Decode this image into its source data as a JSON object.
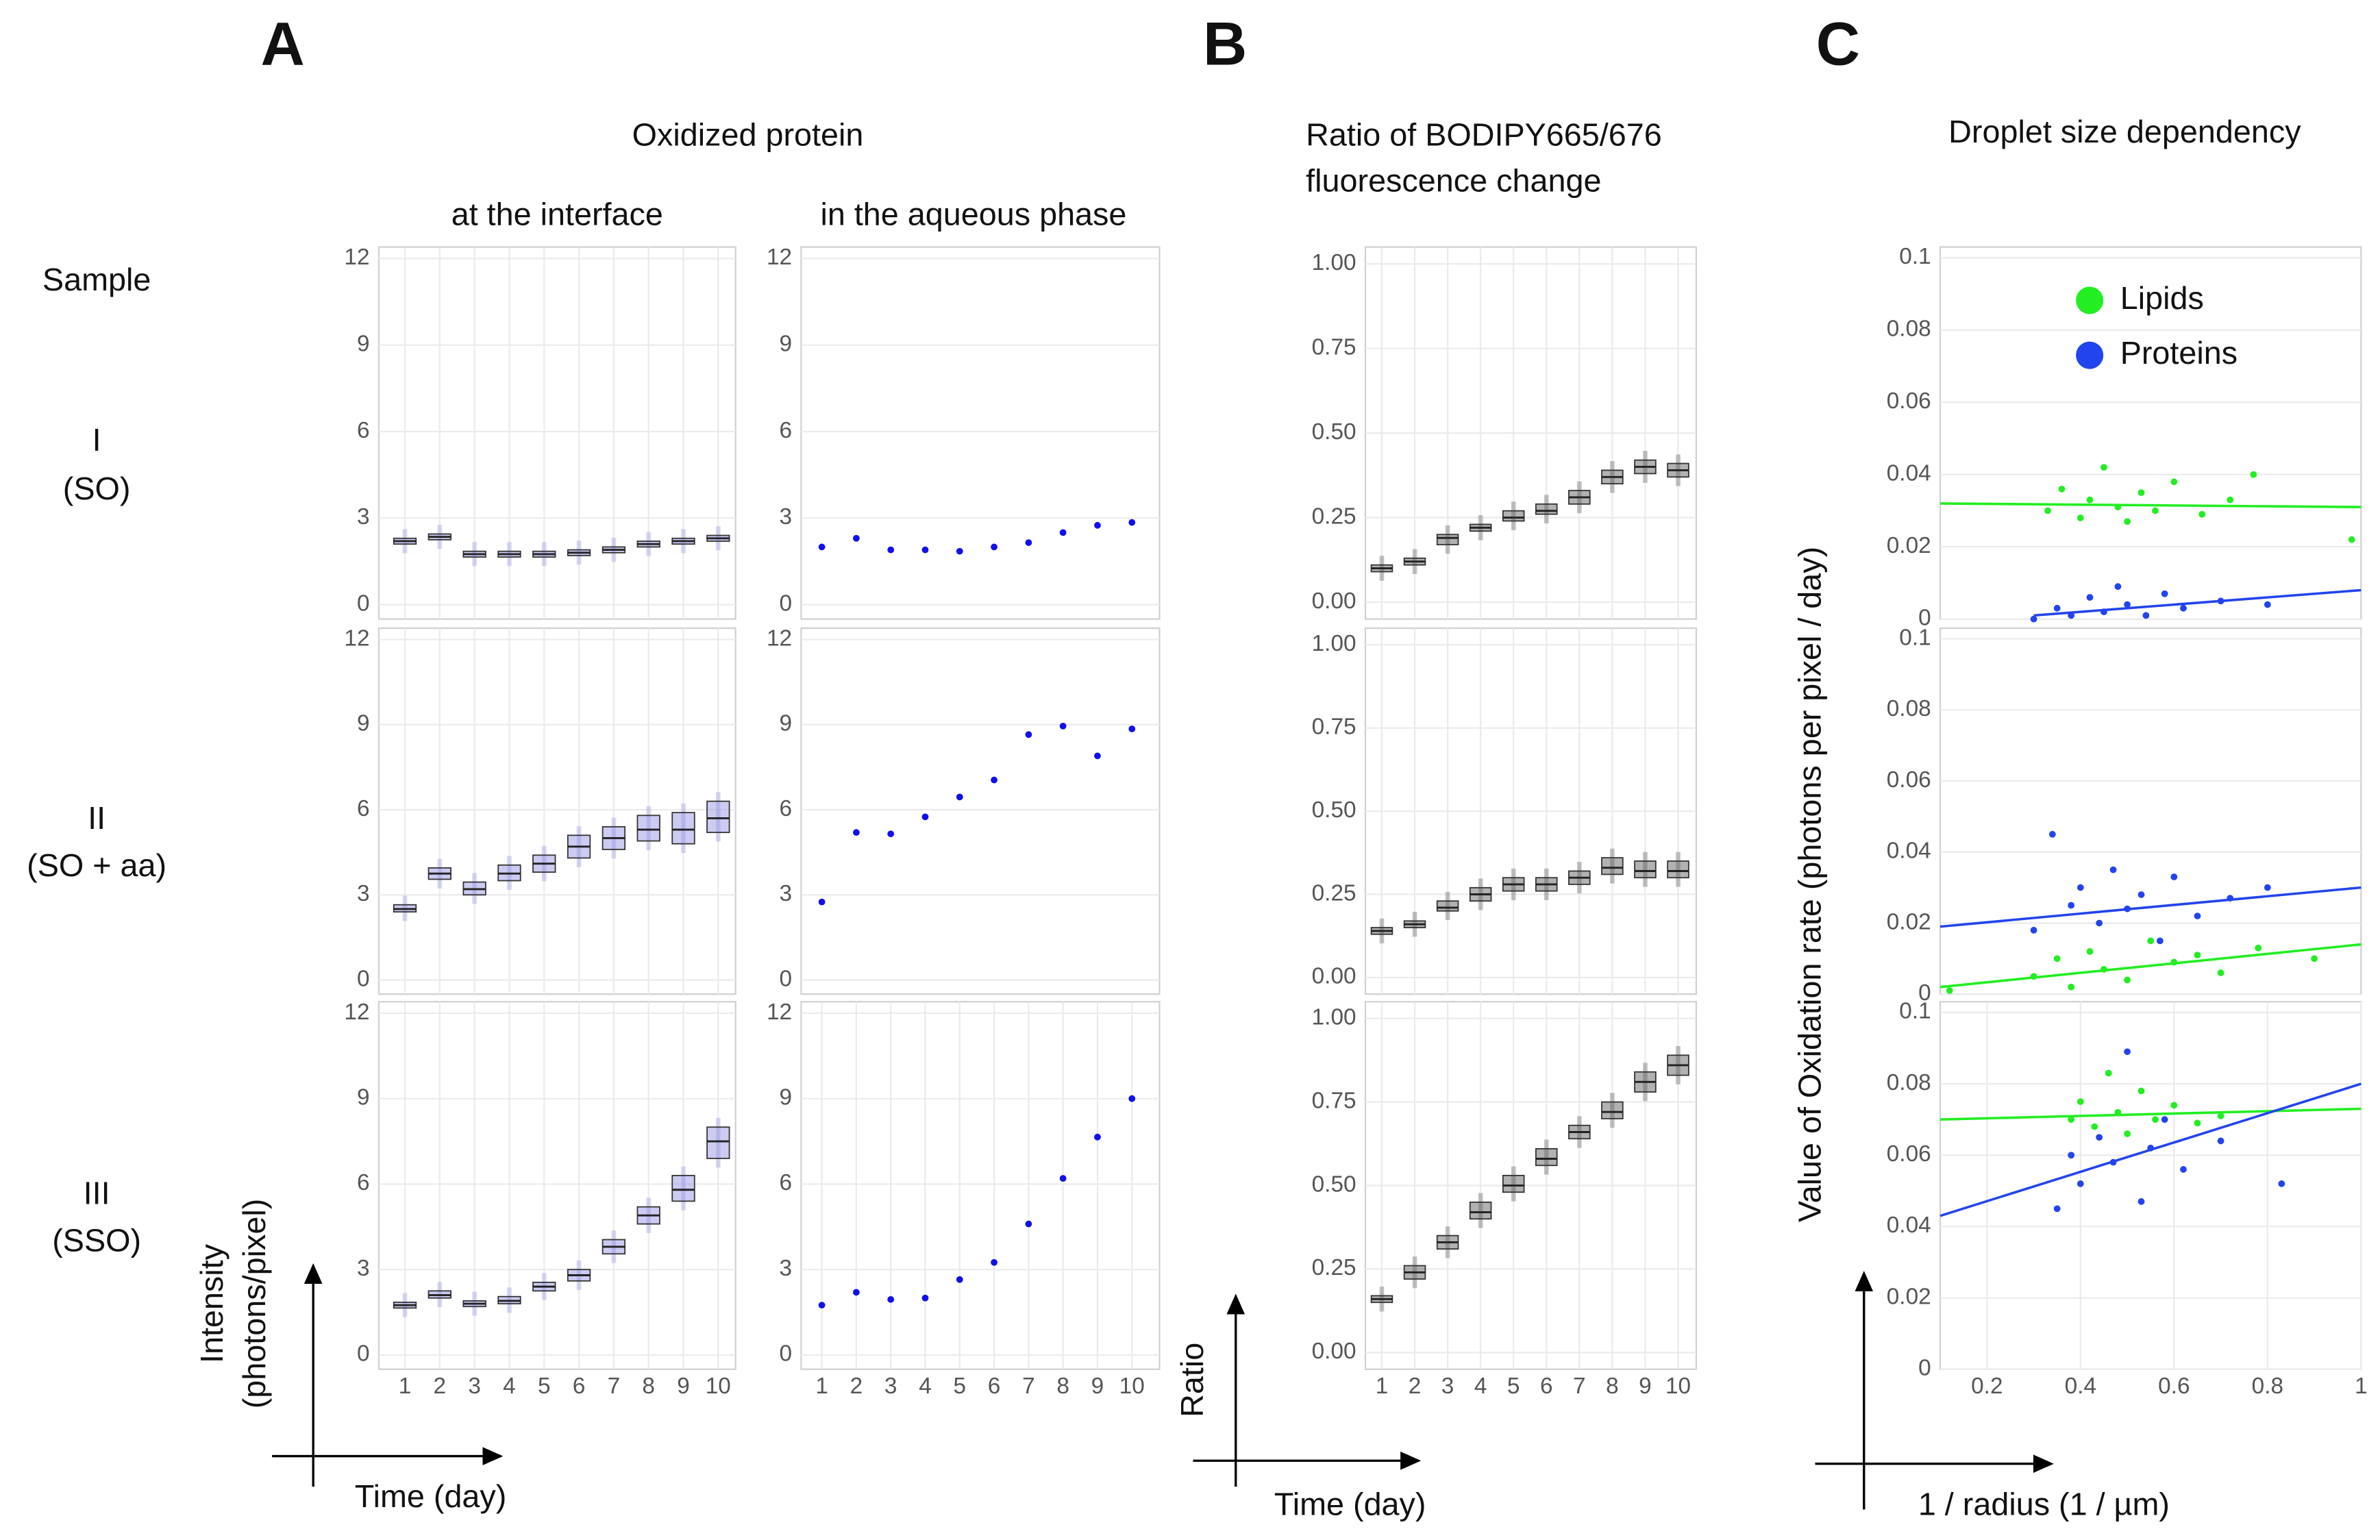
{
  "labels": {
    "panel_a": "A",
    "panel_b": "B",
    "panel_c": "C",
    "oxidized_protein": "Oxidized protein",
    "at_interface": "at the interface",
    "aqueous_phase": "in the aqueous phase",
    "sample": "Sample",
    "row1": "I",
    "row1_sample": "(SO)",
    "row2": "II",
    "row2_sample": "(SO + aa)",
    "row3": "III",
    "row3_sample": "(SSO)",
    "a_ylabel_1": "Intensity",
    "a_ylabel_2": "(photons/pixel)",
    "a_xlabel": "Time (day)",
    "b_title_1": "Ratio of BODIPY665/676",
    "b_title_2": "fluorescence change",
    "b_ylabel": "Ratio",
    "b_xlabel": "Time (day)",
    "c_title": "Droplet size dependency",
    "c_ylabel": "Value of Oxidation rate (photons per pixel / day)",
    "c_xlabel": "1 / radius (1 / µm)"
  },
  "chart_data": [
    {
      "type": "box",
      "color": "#9a9ae6",
      "grid": true,
      "x": [
        1,
        2,
        3,
        4,
        5,
        6,
        7,
        8,
        9,
        10
      ],
      "xlim": [
        0.25,
        10.5
      ],
      "ylim": [
        -0.5,
        12.4
      ],
      "yticks": [
        0,
        3,
        6,
        9,
        12
      ],
      "values": [
        2.2,
        2.35,
        1.75,
        1.75,
        1.75,
        1.8,
        1.9,
        2.1,
        2.2,
        2.3
      ],
      "q1": [
        2.1,
        2.25,
        1.65,
        1.65,
        1.65,
        1.7,
        1.8,
        2.0,
        2.1,
        2.2
      ],
      "q3": [
        2.3,
        2.45,
        1.85,
        1.85,
        1.85,
        1.9,
        2.0,
        2.2,
        2.3,
        2.4
      ]
    },
    {
      "type": "scatter",
      "grid": true,
      "xlim": [
        0.4,
        10.8
      ],
      "ylim": [
        -0.5,
        12.4
      ],
      "yticks": [
        0,
        3,
        6,
        9,
        12
      ],
      "series": [
        {
          "color": "#1010ee",
          "x": [
            1,
            2,
            3,
            4,
            5,
            6,
            7,
            8,
            9,
            10
          ],
          "values": [
            2.0,
            2.3,
            1.9,
            1.9,
            1.85,
            2.0,
            2.15,
            2.5,
            2.75,
            2.85
          ]
        }
      ]
    },
    {
      "type": "box",
      "color": "#666666",
      "grid": true,
      "x": [
        1,
        2,
        3,
        4,
        5,
        6,
        7,
        8,
        9,
        10
      ],
      "xlim": [
        0.5,
        10.55
      ],
      "ylim": [
        -0.05,
        1.05
      ],
      "yticks": [
        {
          "value": 0,
          "label": "0.00"
        },
        {
          "value": 0.25,
          "label": "0.25"
        },
        {
          "value": 0.5,
          "label": "0.50"
        },
        {
          "value": 0.75,
          "label": "0.75"
        },
        {
          "value": 1,
          "label": "1.00"
        }
      ],
      "values": [
        0.1,
        0.12,
        0.19,
        0.22,
        0.25,
        0.27,
        0.31,
        0.37,
        0.4,
        0.39
      ],
      "q1": [
        0.09,
        0.11,
        0.17,
        0.21,
        0.24,
        0.26,
        0.29,
        0.35,
        0.38,
        0.37
      ],
      "q3": [
        0.11,
        0.13,
        0.2,
        0.23,
        0.27,
        0.29,
        0.33,
        0.39,
        0.42,
        0.41
      ]
    },
    {
      "type": "scatter",
      "grid": true,
      "xlim": [
        0.1,
        1
      ],
      "ylim": [
        0,
        0.103
      ],
      "yticks": [
        0,
        0.02,
        0.04,
        0.06,
        0.08,
        0.1
      ],
      "legend": "top",
      "series": [
        {
          "name": "Lipids",
          "color": "#22ee22",
          "x": [
            0.33,
            0.36,
            0.4,
            0.42,
            0.45,
            0.48,
            0.5,
            0.53,
            0.56,
            0.6,
            0.66,
            0.72,
            0.77,
            0.98
          ],
          "values": [
            0.03,
            0.036,
            0.028,
            0.033,
            0.042,
            0.031,
            0.027,
            0.035,
            0.03,
            0.038,
            0.029,
            0.033,
            0.04,
            0.022
          ],
          "fit_x": [
            0.1,
            1
          ],
          "fit_y": [
            0.032,
            0.031
          ]
        },
        {
          "name": "Proteins",
          "color": "#2244ee",
          "x": [
            0.3,
            0.35,
            0.38,
            0.42,
            0.45,
            0.48,
            0.5,
            0.54,
            0.58,
            0.62,
            0.7,
            0.8
          ],
          "values": [
            0,
            0.003,
            0.001,
            0.006,
            0.002,
            0.009,
            0.004,
            0.001,
            0.007,
            0.003,
            0.005,
            0.004
          ],
          "fit_x": [
            0.3,
            1
          ],
          "fit_y": [
            0.001,
            0.008
          ]
        }
      ]
    },
    {
      "type": "box",
      "color": "#9a9ae6",
      "grid": true,
      "x": [
        1,
        2,
        3,
        4,
        5,
        6,
        7,
        8,
        9,
        10
      ],
      "xlim": [
        0.25,
        10.5
      ],
      "ylim": [
        -0.5,
        12.4
      ],
      "yticks": [
        0,
        3,
        6,
        9,
        12
      ],
      "values": [
        2.5,
        3.75,
        3.2,
        3.75,
        4.1,
        4.7,
        5.0,
        5.3,
        5.3,
        5.7
      ],
      "q1": [
        2.4,
        3.55,
        3.0,
        3.5,
        3.8,
        4.3,
        4.6,
        4.9,
        4.8,
        5.2
      ],
      "q3": [
        2.65,
        3.95,
        3.45,
        4.05,
        4.4,
        5.1,
        5.4,
        5.8,
        5.9,
        6.3
      ]
    },
    {
      "type": "scatter",
      "grid": true,
      "xlim": [
        0.4,
        10.8
      ],
      "ylim": [
        -0.5,
        12.4
      ],
      "yticks": [
        0,
        3,
        6,
        9,
        12
      ],
      "series": [
        {
          "color": "#1010ee",
          "x": [
            1,
            2,
            3,
            4,
            5,
            6,
            7,
            8,
            9,
            10
          ],
          "values": [
            2.75,
            5.2,
            5.15,
            5.75,
            6.45,
            7.05,
            8.65,
            8.95,
            7.9,
            8.85
          ]
        }
      ]
    },
    {
      "type": "box",
      "color": "#666666",
      "grid": true,
      "x": [
        1,
        2,
        3,
        4,
        5,
        6,
        7,
        8,
        9,
        10
      ],
      "xlim": [
        0.5,
        10.55
      ],
      "ylim": [
        -0.05,
        1.05
      ],
      "yticks": [
        {
          "value": 0,
          "label": "0.00"
        },
        {
          "value": 0.25,
          "label": "0.25"
        },
        {
          "value": 0.5,
          "label": "0.50"
        },
        {
          "value": 0.75,
          "label": "0.75"
        },
        {
          "value": 1,
          "label": "1.00"
        }
      ],
      "values": [
        0.14,
        0.16,
        0.21,
        0.25,
        0.28,
        0.28,
        0.3,
        0.33,
        0.32,
        0.32
      ],
      "q1": [
        0.13,
        0.15,
        0.2,
        0.23,
        0.26,
        0.26,
        0.28,
        0.31,
        0.3,
        0.3
      ],
      "q3": [
        0.15,
        0.17,
        0.23,
        0.27,
        0.3,
        0.3,
        0.32,
        0.36,
        0.35,
        0.35
      ]
    },
    {
      "type": "scatter",
      "grid": true,
      "xlim": [
        0.1,
        1
      ],
      "ylim": [
        0,
        0.103
      ],
      "yticks": [
        0,
        0.02,
        0.04,
        0.06,
        0.08,
        0.1
      ],
      "series": [
        {
          "color": "#2244ee",
          "x": [
            0.3,
            0.34,
            0.38,
            0.4,
            0.44,
            0.47,
            0.5,
            0.53,
            0.57,
            0.6,
            0.65,
            0.72,
            0.8
          ],
          "values": [
            0.018,
            0.045,
            0.025,
            0.03,
            0.02,
            0.035,
            0.024,
            0.028,
            0.015,
            0.033,
            0.022,
            0.027,
            0.03
          ],
          "fit_x": [
            0.1,
            1
          ],
          "fit_y": [
            0.019,
            0.03
          ]
        },
        {
          "color": "#22ee22",
          "x": [
            0.12,
            0.3,
            0.35,
            0.38,
            0.42,
            0.45,
            0.5,
            0.55,
            0.6,
            0.65,
            0.7,
            0.78,
            0.9
          ],
          "values": [
            0.001,
            0.005,
            0.01,
            0.002,
            0.012,
            0.007,
            0.004,
            0.015,
            0.009,
            0.011,
            0.006,
            0.013,
            0.01
          ],
          "fit_x": [
            0.1,
            1
          ],
          "fit_y": [
            0.002,
            0.014
          ]
        }
      ]
    },
    {
      "type": "box",
      "color": "#9a9ae6",
      "grid": true,
      "x": [
        1,
        2,
        3,
        4,
        5,
        6,
        7,
        8,
        9,
        10
      ],
      "xticks": [
        1,
        2,
        3,
        4,
        5,
        6,
        7,
        8,
        9,
        10
      ],
      "xlim": [
        0.25,
        10.5
      ],
      "ylim": [
        -0.5,
        12.4
      ],
      "yticks": [
        0,
        3,
        6,
        9,
        12
      ],
      "values": [
        1.75,
        2.1,
        1.8,
        1.9,
        2.4,
        2.8,
        3.8,
        4.9,
        5.8,
        7.5
      ],
      "q1": [
        1.65,
        2.0,
        1.7,
        1.8,
        2.25,
        2.6,
        3.55,
        4.6,
        5.4,
        6.9
      ],
      "q3": [
        1.85,
        2.25,
        1.9,
        2.05,
        2.55,
        3.0,
        4.05,
        5.2,
        6.3,
        8.0
      ]
    },
    {
      "type": "scatter",
      "grid": true,
      "xticks": [
        1,
        2,
        3,
        4,
        5,
        6,
        7,
        8,
        9,
        10
      ],
      "xlim": [
        0.4,
        10.8
      ],
      "ylim": [
        -0.5,
        12.4
      ],
      "yticks": [
        0,
        3,
        6,
        9,
        12
      ],
      "series": [
        {
          "color": "#1010ee",
          "x": [
            1,
            2,
            3,
            4,
            5,
            6,
            7,
            8,
            9,
            10
          ],
          "values": [
            1.75,
            2.2,
            1.95,
            2.0,
            2.65,
            3.25,
            4.6,
            6.2,
            7.65,
            9.0
          ]
        }
      ]
    },
    {
      "type": "box",
      "color": "#666666",
      "grid": true,
      "x": [
        1,
        2,
        3,
        4,
        5,
        6,
        7,
        8,
        9,
        10
      ],
      "xticks": [
        1,
        2,
        3,
        4,
        5,
        6,
        7,
        8,
        9,
        10
      ],
      "xlim": [
        0.5,
        10.55
      ],
      "ylim": [
        -0.05,
        1.05
      ],
      "yticks": [
        {
          "value": 0,
          "label": "0.00"
        },
        {
          "value": 0.25,
          "label": "0.25"
        },
        {
          "value": 0.5,
          "label": "0.50"
        },
        {
          "value": 0.75,
          "label": "0.75"
        },
        {
          "value": 1,
          "label": "1.00"
        }
      ],
      "values": [
        0.16,
        0.24,
        0.33,
        0.42,
        0.5,
        0.58,
        0.66,
        0.72,
        0.81,
        0.86
      ],
      "q1": [
        0.15,
        0.22,
        0.31,
        0.4,
        0.48,
        0.56,
        0.64,
        0.7,
        0.78,
        0.83
      ],
      "q3": [
        0.17,
        0.26,
        0.35,
        0.45,
        0.53,
        0.61,
        0.68,
        0.75,
        0.84,
        0.89
      ]
    },
    {
      "type": "scatter",
      "grid": true,
      "xticks": [
        0.2,
        0.4,
        0.6,
        0.8,
        1
      ],
      "xlim": [
        0.1,
        1
      ],
      "ylim": [
        0,
        0.103
      ],
      "yticks": [
        0,
        0.02,
        0.04,
        0.06,
        0.08,
        0.1
      ],
      "series": [
        {
          "color": "#22ee22",
          "x": [
            0.38,
            0.4,
            0.43,
            0.46,
            0.48,
            0.5,
            0.53,
            0.56,
            0.6,
            0.65,
            0.7
          ],
          "values": [
            0.07,
            0.075,
            0.068,
            0.083,
            0.072,
            0.066,
            0.078,
            0.07,
            0.074,
            0.069,
            0.071
          ],
          "fit_x": [
            0.1,
            1
          ],
          "fit_y": [
            0.07,
            0.073
          ]
        },
        {
          "color": "#2244ee",
          "x": [
            0.35,
            0.38,
            0.4,
            0.44,
            0.47,
            0.5,
            0.53,
            0.55,
            0.58,
            0.62,
            0.7,
            0.83
          ],
          "values": [
            0.045,
            0.06,
            0.052,
            0.065,
            0.058,
            0.089,
            0.047,
            0.062,
            0.07,
            0.056,
            0.064,
            0.052
          ],
          "fit_x": [
            0.1,
            1
          ],
          "fit_y": [
            0.043,
            0.08
          ]
        }
      ]
    }
  ]
}
